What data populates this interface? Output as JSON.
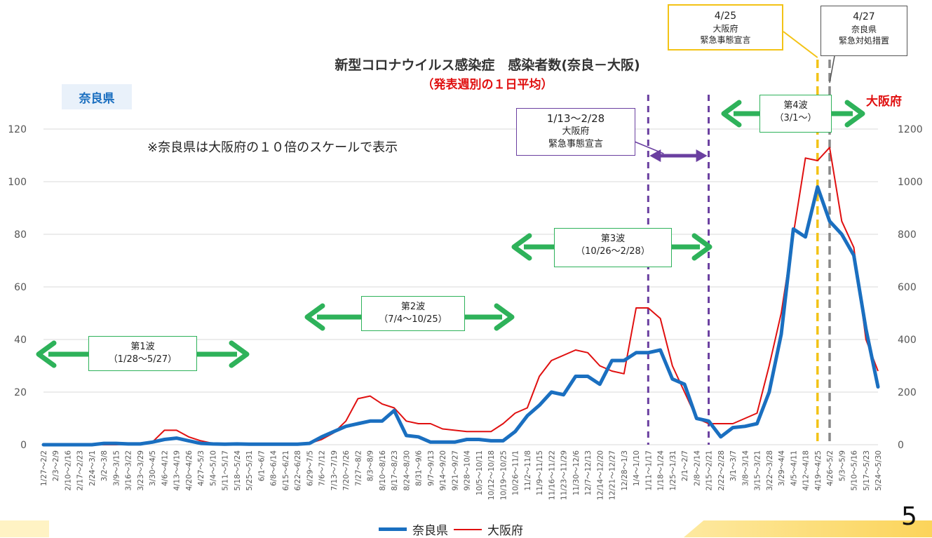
{
  "page": {
    "title": "新型コロナウイルス感染症　感染者数(奈良－大阪)",
    "subtitle": "（発表週別の１日平均）",
    "left_axis_title": "奈良県",
    "right_axis_title": "大阪府",
    "note": "※奈良県は大阪府の１０倍のスケールで表示",
    "page_number": "5"
  },
  "annotations": {
    "wave1": {
      "label": "第1波",
      "range": "（1/28～5/27）"
    },
    "wave2": {
      "label": "第2波",
      "range": "（7/4～10/25）"
    },
    "wave3": {
      "label": "第3波",
      "range": "（10/26～2/28）"
    },
    "wave4": {
      "label": "第4波",
      "range": "（3/1～）"
    },
    "emergency1": {
      "dates": "1/13～2/28",
      "line1": "大阪府",
      "line2": "緊急事態宣言"
    },
    "emergency2": {
      "dates": "4/25",
      "line1": "大阪府",
      "line2": "緊急事態宣言"
    },
    "measures": {
      "dates": "4/27",
      "line1": "奈良県",
      "line2": "緊急対処措置"
    }
  },
  "colors": {
    "nara": "#1a6fc0",
    "osaka": "#e01010",
    "wave": "#2eb25a",
    "emergency": "#6a3fa0",
    "yellow": "#f3c316",
    "gray": "#888888"
  },
  "chart_data": {
    "type": "line",
    "title": "新型コロナウイルス感染症　感染者数(奈良－大阪)",
    "subtitle": "（発表週別の１日平均）",
    "categories": [
      "1/27～2/2",
      "2/3～2/9",
      "2/10～2/16",
      "2/17～2/23",
      "2/24～3/1",
      "3/2～3/8",
      "3/9～3/15",
      "3/16～3/22",
      "3/23～3/29",
      "3/30～4/5",
      "4/6～4/12",
      "4/13～4/19",
      "4/20～4/26",
      "4/27～5/3",
      "5/4～5/10",
      "5/11～5/17",
      "5/18～5/24",
      "5/25～5/31",
      "6/1～6/7",
      "6/8～6/14",
      "6/15～6/21",
      "6/22～6/28",
      "6/29～7/5",
      "7/6～7/12",
      "7/13～7/19",
      "7/20～7/26",
      "7/27～8/2",
      "8/3～8/9",
      "8/10～8/16",
      "8/17～8/23",
      "8/24～8/30",
      "8/31～9/6",
      "9/7～9/13",
      "9/14～9/20",
      "9/21～9/27",
      "9/28～10/4",
      "10/5～10/11",
      "10/12～10/18",
      "10/19～10/25",
      "10/26～11/1",
      "11/2～11/8",
      "11/9～11/15",
      "11/16～11/22",
      "11/23～11/29",
      "11/30～12/6",
      "12/7～12/13",
      "12/14～12/20",
      "12/21～12/27",
      "12/28～1/3",
      "1/4～1/10",
      "1/11～1/17",
      "1/18～1/24",
      "1/25～1/31",
      "2/1～2/7",
      "2/8～2/14",
      "2/15～2/21",
      "2/22～2/28",
      "3/1～3/7",
      "3/8～3/14",
      "3/15～3/21",
      "3/22～3/28",
      "3/29～4/4",
      "4/5～4/11",
      "4/12～4/18",
      "4/19～4/25",
      "4/26～5/2",
      "5/3～5/9",
      "5/10～5/16",
      "5/17～5/23",
      "5/24～5/30"
    ],
    "y_left": {
      "label": "奈良県",
      "min": 0,
      "max": 120,
      "ticks": [
        0,
        20,
        40,
        60,
        80,
        100,
        120
      ]
    },
    "y_right": {
      "label": "大阪府",
      "min": 0,
      "max": 1200,
      "ticks": [
        0,
        200,
        400,
        600,
        800,
        1000,
        1200
      ]
    },
    "series": [
      {
        "name": "奈良県",
        "axis": "left",
        "values": [
          0,
          0,
          0,
          0,
          0,
          0.5,
          0.5,
          0.3,
          0.3,
          1,
          2,
          2.5,
          1.5,
          0.5,
          0.3,
          0.2,
          0.3,
          0.2,
          0.2,
          0.2,
          0.2,
          0.2,
          0.5,
          3,
          5,
          7,
          8,
          9,
          9,
          13,
          3.5,
          3,
          1,
          1,
          1,
          2,
          2,
          1.5,
          1.5,
          5,
          11,
          15,
          20,
          19,
          26,
          26,
          23,
          32,
          32,
          35,
          35,
          36,
          25,
          23,
          10,
          9,
          3,
          6.5,
          7,
          8,
          20,
          42,
          82,
          79,
          98,
          85,
          80,
          72,
          44,
          22
        ]
      },
      {
        "name": "大阪府",
        "axis": "right",
        "values": [
          0,
          0,
          0,
          0,
          0,
          0,
          0,
          2,
          3,
          10,
          55,
          55,
          30,
          15,
          5,
          2,
          1,
          1,
          1,
          1,
          1,
          1,
          5,
          20,
          45,
          90,
          175,
          185,
          155,
          140,
          90,
          80,
          80,
          60,
          55,
          50,
          50,
          50,
          80,
          120,
          140,
          260,
          320,
          340,
          360,
          350,
          300,
          280,
          270,
          520,
          520,
          480,
          300,
          200,
          100,
          80,
          80,
          80,
          100,
          120,
          300,
          500,
          800,
          1090,
          1080,
          1130,
          850,
          750,
          400,
          280
        ]
      }
    ],
    "markers": [
      {
        "label": "1/13～2/28 大阪府 緊急事態宣言",
        "from": "1/11～1/17",
        "to": "2/15～2/21"
      },
      {
        "label": "4/25 大阪府 緊急事態宣言",
        "at": "4/19～4/25"
      },
      {
        "label": "4/27 奈良県 緊急対処措置",
        "at": "4/26～5/2"
      }
    ],
    "legend": "bottom"
  }
}
